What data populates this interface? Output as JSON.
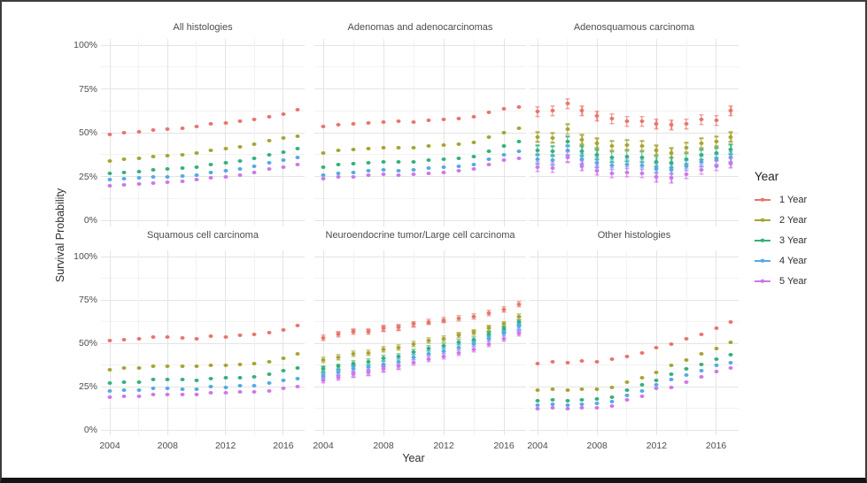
{
  "figure": {
    "y_axis_title": "Survival Probability",
    "x_axis_title": "Year",
    "y_tick_labels": [
      "100%",
      "75%",
      "50%",
      "25%",
      "0%"
    ],
    "x_tick_labels": [
      "2004",
      "2008",
      "2012",
      "2016"
    ]
  },
  "legend": {
    "title": "Year",
    "items": [
      {
        "label": "1 Year",
        "color": "#E8756B"
      },
      {
        "label": "2 Year",
        "color": "#A6A433"
      },
      {
        "label": "3 Year",
        "color": "#35B07B"
      },
      {
        "label": "4 Year",
        "color": "#53A9E8"
      },
      {
        "label": "5 Year",
        "color": "#CE77E8"
      }
    ]
  },
  "chart_data": {
    "type": "scatter",
    "x": [
      2004,
      2005,
      2006,
      2007,
      2008,
      2009,
      2010,
      2011,
      2012,
      2013,
      2014,
      2015,
      2016,
      2017
    ],
    "ylim": [
      0,
      100
    ],
    "y_unit": "percent",
    "grid": "on",
    "y_major_gridlines": [
      0,
      25,
      50,
      75,
      100
    ],
    "y_minor_gridlines": [
      12.5,
      37.5,
      62.5,
      87.5
    ],
    "x_major_gridlines": [
      2004,
      2008,
      2012,
      2016
    ],
    "x_minor_gridlines": [
      2006,
      2010,
      2014
    ],
    "legend_position": "right",
    "series_names": [
      "1 Year",
      "2 Year",
      "3 Year",
      "4 Year",
      "5 Year"
    ],
    "panels": [
      {
        "title": "All histologies",
        "error_halfwidth": 0,
        "series": [
          {
            "name": "1 Year",
            "values": [
              49,
              50,
              50.5,
              51.5,
              52,
              52.5,
              53.5,
              55,
              55.5,
              56.5,
              57.5,
              59,
              60.5,
              63
            ]
          },
          {
            "name": "2 Year",
            "values": [
              34,
              35,
              35.5,
              36.5,
              37,
              37.5,
              38.5,
              40,
              41,
              42,
              43.5,
              45.5,
              47,
              48
            ]
          },
          {
            "name": "3 Year",
            "values": [
              27,
              27.5,
              28,
              29,
              29.5,
              30,
              30.5,
              32,
              33,
              34,
              35.5,
              37.5,
              39,
              41
            ]
          },
          {
            "name": "4 Year",
            "values": [
              23,
              23.5,
              24,
              24.5,
              25,
              25.5,
              26,
              27.5,
              28.5,
              29.5,
              31,
              33,
              34.5,
              36
            ]
          },
          {
            "name": "5 Year",
            "values": [
              19.5,
              20,
              20.5,
              21,
              21.5,
              22,
              23,
              24,
              25,
              26,
              27.5,
              29.5,
              30.5,
              32
            ]
          }
        ]
      },
      {
        "title": "Adenomas and adenocarcinomas",
        "error_halfwidth": 0,
        "series": [
          {
            "name": "1 Year",
            "values": [
              53.5,
              54.5,
              55,
              55.5,
              56,
              56.5,
              56,
              57,
              57.5,
              58,
              59,
              61.5,
              63.5,
              64.5
            ]
          },
          {
            "name": "2 Year",
            "values": [
              38.5,
              40,
              40.5,
              41,
              41.5,
              41.5,
              41.5,
              42.5,
              43,
              43.5,
              44.5,
              47.5,
              50,
              52.5
            ]
          },
          {
            "name": "3 Year",
            "values": [
              30.5,
              32,
              32.5,
              33,
              33.5,
              33.5,
              33.5,
              34.5,
              35,
              35.5,
              36.5,
              39.5,
              42.5,
              45
            ]
          },
          {
            "name": "4 Year",
            "values": [
              26,
              27,
              27.5,
              28.5,
              29,
              28.5,
              29,
              30,
              30.5,
              31,
              32,
              35,
              37.5,
              39.5
            ]
          },
          {
            "name": "5 Year",
            "values": [
              23.5,
              24.5,
              25,
              26,
              26.5,
              26,
              26.5,
              27,
              27.5,
              28.5,
              29.5,
              32,
              34.5,
              35.5
            ]
          }
        ]
      },
      {
        "title": "Adenosquamous carcinoma",
        "error_halfwidth": 2.8,
        "series": [
          {
            "name": "1 Year",
            "values": [
              62,
              62.5,
              66.5,
              62.5,
              59.5,
              58,
              56.5,
              56.5,
              55,
              54.5,
              55,
              57.5,
              57,
              62.5
            ]
          },
          {
            "name": "2 Year",
            "values": [
              47.5,
              47,
              52,
              46,
              44,
              42.5,
              43,
              42.5,
              40,
              38.5,
              41.5,
              44,
              45,
              47.5
            ]
          },
          {
            "name": "3 Year",
            "values": [
              40,
              39.5,
              45,
              39.5,
              37.5,
              36,
              36.5,
              36,
              33.5,
              33,
              35,
              37.5,
              38.5,
              40.5
            ]
          },
          {
            "name": "4 Year",
            "values": [
              35,
              34.5,
              40,
              35,
              33,
              31.5,
              32,
              31.5,
              29.5,
              29,
              31,
              33.5,
              34.5,
              36
            ]
          },
          {
            "name": "5 Year",
            "values": [
              30.5,
              30,
              36,
              31,
              28.5,
              27,
              27.5,
              27,
              24.5,
              24,
              26.5,
              29,
              31,
              32.5
            ]
          }
        ]
      },
      {
        "title": "Squamous cell carcinoma",
        "error_halfwidth": 0,
        "series": [
          {
            "name": "1 Year",
            "values": [
              51.5,
              52,
              52.5,
              53.5,
              53.5,
              53,
              52.5,
              54,
              53.5,
              54.5,
              55,
              56,
              57.5,
              60
            ]
          },
          {
            "name": "2 Year",
            "values": [
              34.5,
              35.5,
              35.5,
              36.5,
              36.5,
              36.5,
              36.5,
              37.5,
              37,
              38,
              38.5,
              39.5,
              41.5,
              44
            ]
          },
          {
            "name": "3 Year",
            "values": [
              27,
              27.5,
              27.5,
              29,
              29,
              29,
              28.5,
              29.5,
              30,
              30,
              30.5,
              32,
              34,
              35.5
            ]
          },
          {
            "name": "4 Year",
            "values": [
              22.5,
              23,
              23,
              24,
              24,
              23.5,
              23.5,
              25,
              24.5,
              25.5,
              25.5,
              27,
              28.5,
              29.5
            ]
          },
          {
            "name": "5 Year",
            "values": [
              19,
              19.5,
              19.5,
              20.5,
              20.5,
              20.5,
              20.5,
              21.5,
              21.5,
              22,
              22,
              22.5,
              24,
              25
            ]
          }
        ]
      },
      {
        "title": "Neuroendocrine tumor/Large cell carcinoma",
        "error_halfwidth": 1.5,
        "series": [
          {
            "name": "1 Year",
            "values": [
              53,
              55,
              56.5,
              56.5,
              58.5,
              59,
              61,
              62.5,
              63.5,
              64.5,
              65.5,
              67.5,
              69.5,
              72.5
            ]
          },
          {
            "name": "2 Year",
            "values": [
              40.5,
              42,
              44,
              44.5,
              46.5,
              47.5,
              49.5,
              51.5,
              52.5,
              54.5,
              56,
              58.5,
              61,
              65.5
            ]
          },
          {
            "name": "3 Year",
            "values": [
              35,
              36.5,
              38.5,
              39.5,
              41.5,
              42.5,
              45,
              47,
              48.5,
              50.5,
              52,
              55,
              58,
              62
            ]
          },
          {
            "name": "4 Year",
            "values": [
              31,
              33,
              35,
              36,
              38,
              39.5,
              42,
              44,
              45.5,
              47.5,
              49.5,
              52.5,
              55.5,
              59.5
            ]
          },
          {
            "name": "5 Year",
            "values": [
              28.5,
              30,
              32,
              33,
              35,
              36.5,
              39,
              41,
              42.5,
              44.5,
              46.5,
              49.5,
              52.5,
              55.5
            ]
          }
        ]
      },
      {
        "title": "Other histologies",
        "error_halfwidth": 0,
        "series": [
          {
            "name": "1 Year",
            "values": [
              38.5,
              39.5,
              39,
              40,
              39.5,
              41,
              42.5,
              44.5,
              47.5,
              49.5,
              52.5,
              55,
              58.5,
              62
            ]
          },
          {
            "name": "2 Year",
            "values": [
              23,
              23.5,
              23,
              23.5,
              23.5,
              24.5,
              27.5,
              30,
              33,
              37,
              40.5,
              44,
              47,
              50.5
            ]
          },
          {
            "name": "3 Year",
            "values": [
              17,
              17.5,
              17,
              17.5,
              18,
              19,
              23,
              26,
              28.5,
              32,
              35,
              38,
              41,
              43.5
            ]
          },
          {
            "name": "4 Year",
            "values": [
              14.5,
              15,
              14.5,
              15,
              15.5,
              16.5,
              20,
              22.5,
              26,
              29,
              31.5,
              34,
              37,
              39
            ]
          },
          {
            "name": "5 Year",
            "values": [
              12.5,
              13,
              12.5,
              13,
              13,
              14,
              17.5,
              19.5,
              24,
              24.5,
              27.5,
              30.5,
              33.5,
              35.5
            ]
          }
        ]
      }
    ]
  }
}
